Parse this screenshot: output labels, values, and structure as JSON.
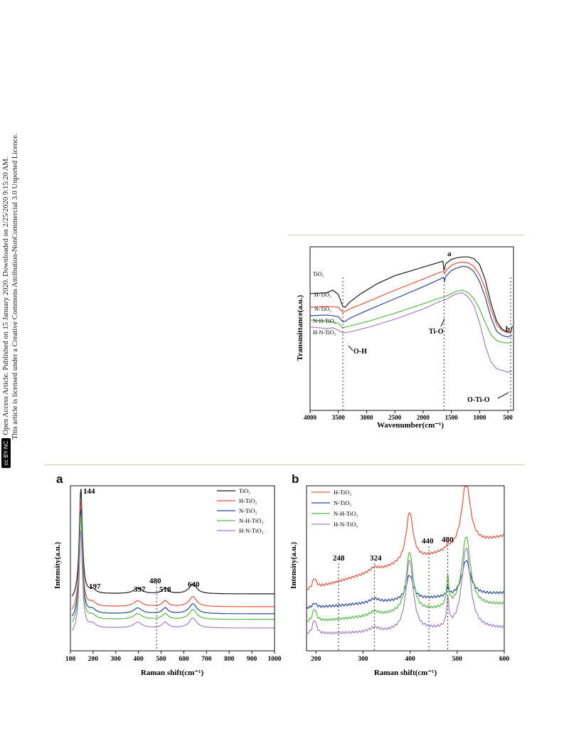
{
  "sidebar": {
    "badge": "cc BY-NC",
    "line1": "Open Access Article. Published on 15 January 2020. Downloaded on 2/25/2020 9:15:20 AM.",
    "line2": "This article is licensed under a Creative Commons Attribution-NonCommercial 3.0 Unported Licence."
  },
  "colors": {
    "TiO2": "#1a1a1a",
    "H-TiO2": "#e5533d",
    "N-TiO2": "#27489a",
    "N-H-TiO2": "#57b947",
    "H-N-TiO2": "#a57fc6"
  },
  "chart_data": [
    {
      "type": "line",
      "panel": "ftir",
      "xlabel": "Wavenumber(cm⁻¹)",
      "ylabel": "Transmittance(a.u.)",
      "xlim": [
        4000,
        400
      ],
      "xticks": [
        "4000",
        "3500",
        "3000",
        "2500",
        "2000",
        "1500",
        "1000",
        "500"
      ],
      "series_labels": [
        "TiO₂",
        "H-TiO₂",
        "N-TiO₂",
        "N-H-TiO₂",
        "H-N-TiO₂"
      ],
      "series": [
        {
          "key": "TiO2",
          "x": [
            4000,
            3700,
            3600,
            3500,
            3420,
            3380,
            3300,
            3100,
            2800,
            2500,
            2200,
            2000,
            1800,
            1700,
            1650,
            1630,
            1600,
            1500,
            1400,
            1300,
            1200,
            1100,
            1000,
            900,
            800,
            700,
            600,
            500,
            450,
            420
          ],
          "y": [
            3.6,
            3.7,
            4.0,
            3.5,
            2.1,
            2.0,
            2.6,
            3.6,
            4.8,
            5.7,
            6.3,
            6.7,
            7.1,
            7.3,
            7.4,
            6.3,
            7.1,
            7.6,
            7.8,
            7.9,
            7.9,
            7.7,
            7.0,
            5.2,
            2.5,
            0.4,
            -0.6,
            -0.9,
            -1.0,
            -0.2
          ]
        },
        {
          "key": "H-TiO2",
          "x": [
            4000,
            3700,
            3500,
            3420,
            3380,
            3300,
            3000,
            2500,
            2000,
            1700,
            1640,
            1620,
            1600,
            1500,
            1400,
            1300,
            1200,
            1100,
            1000,
            900,
            800,
            700,
            600,
            500,
            430
          ],
          "y": [
            2.0,
            2.1,
            2.0,
            1.4,
            1.5,
            1.8,
            2.6,
            4.0,
            5.3,
            6.1,
            6.2,
            5.9,
            6.3,
            6.9,
            7.2,
            7.3,
            7.2,
            6.8,
            5.8,
            4.2,
            1.8,
            0.0,
            -0.7,
            -1.0,
            -0.8
          ]
        },
        {
          "key": "N-TiO2",
          "x": [
            4000,
            3700,
            3500,
            3420,
            3380,
            3300,
            3000,
            2500,
            2000,
            1700,
            1640,
            1620,
            1600,
            1500,
            1400,
            1300,
            1200,
            1100,
            1000,
            900,
            800,
            700,
            600,
            500,
            430
          ],
          "y": [
            1.0,
            1.1,
            0.9,
            0.3,
            0.35,
            0.7,
            1.6,
            3.0,
            4.4,
            5.3,
            5.5,
            5.1,
            5.6,
            6.3,
            6.6,
            6.8,
            6.7,
            6.2,
            5.0,
            3.2,
            0.8,
            -0.8,
            -1.3,
            -1.5,
            -1.3
          ]
        },
        {
          "key": "N-H-TiO2",
          "x": [
            4000,
            3700,
            3500,
            3420,
            3300,
            3000,
            2500,
            2000,
            1700,
            1630,
            1600,
            1500,
            1400,
            1300,
            1200,
            1100,
            1000,
            900,
            800,
            700,
            600,
            500,
            430
          ],
          "y": [
            0.5,
            0.4,
            0.1,
            -0.4,
            -0.2,
            0.3,
            1.3,
            2.4,
            3.1,
            3.2,
            3.3,
            3.6,
            3.9,
            4.0,
            3.7,
            3.0,
            1.8,
            0.2,
            -1.2,
            -1.9,
            -2.1,
            -2.2,
            -2.1
          ]
        },
        {
          "key": "H-N-TiO2",
          "x": [
            4000,
            3700,
            3600,
            3500,
            3420,
            3300,
            3000,
            2500,
            2000,
            1700,
            1630,
            1600,
            1500,
            1400,
            1300,
            1200,
            1100,
            1000,
            900,
            800,
            700,
            600,
            500,
            430
          ],
          "y": [
            -0.3,
            -0.5,
            -0.4,
            -0.7,
            -1.0,
            -0.9,
            -0.4,
            0.6,
            1.8,
            2.7,
            2.8,
            2.9,
            3.3,
            3.6,
            3.7,
            3.2,
            2.2,
            0.2,
            -2.5,
            -4.4,
            -5.2,
            -5.4,
            -5.6,
            -5.5
          ]
        }
      ],
      "annotations": {
        "oh": "O-H",
        "tio": "Ti-O",
        "otio": "O-Ti-O",
        "a": "a",
        "b": "b"
      },
      "markers": [
        3420,
        1630,
        450
      ]
    },
    {
      "type": "line",
      "panel": "raman-a",
      "letter": "a",
      "xlabel": "Raman shift(cm⁻¹)",
      "ylabel": "Intensity(a.u.)",
      "xlim": [
        100,
        1000
      ],
      "xticks": [
        "100",
        "200",
        "300",
        "400",
        "500",
        "600",
        "700",
        "800",
        "900",
        "1000"
      ],
      "legend": [
        "TiO₂",
        "H-TiO₂",
        "N-TiO₂",
        "N-H-TiO₂",
        "H-N-TiO₂"
      ],
      "peak_labels": [
        "144",
        "197",
        "397",
        "480",
        "518",
        "640"
      ],
      "peaks": [
        144,
        197,
        397,
        480,
        518,
        640
      ],
      "marker": 480
    },
    {
      "type": "line",
      "panel": "raman-b",
      "letter": "b",
      "xlabel": "Raman shift(cm⁻¹)",
      "ylabel": "Intensity(a.u.)",
      "xlim": [
        180,
        600
      ],
      "xticks": [
        "200",
        "300",
        "400",
        "500",
        "600"
      ],
      "legend": [
        "H-TiO₂",
        "N-TiO₂",
        "N-H-TiO₂",
        "H-N-TiO₂"
      ],
      "peak_labels": [
        "248",
        "324",
        "440",
        "480"
      ],
      "markers": [
        248,
        324,
        440,
        480
      ]
    }
  ]
}
